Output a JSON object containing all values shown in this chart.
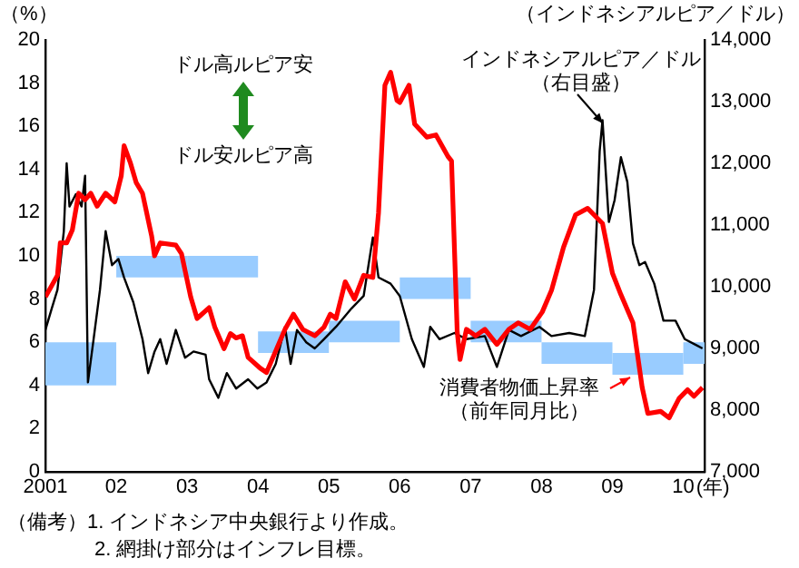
{
  "chart_data": {
    "type": "line",
    "ylabel": "（%）",
    "y2label": "（インドネシアルピア／ドル）",
    "xlabel": "(年)",
    "marker": "none",
    "xlim": [
      2001,
      2010.3
    ],
    "xticks": [
      {
        "value": 2001,
        "label": "2001"
      },
      {
        "value": 2002,
        "label": "02"
      },
      {
        "value": 2003,
        "label": "03"
      },
      {
        "value": 2004,
        "label": "04"
      },
      {
        "value": 2005,
        "label": "05"
      },
      {
        "value": 2006,
        "label": "06"
      },
      {
        "value": 2007,
        "label": "07"
      },
      {
        "value": 2008,
        "label": "08"
      },
      {
        "value": 2009,
        "label": "09"
      },
      {
        "value": 2010,
        "label": "10"
      }
    ],
    "ylim": [
      0,
      20
    ],
    "yticks": [
      0,
      2,
      4,
      6,
      8,
      10,
      12,
      14,
      16,
      18,
      20
    ],
    "y2lim": [
      7000,
      14000
    ],
    "y2ticks": [
      {
        "value": 7000,
        "label": "7,000"
      },
      {
        "value": 8000,
        "label": "8,000"
      },
      {
        "value": 9000,
        "label": "9,000"
      },
      {
        "value": 10000,
        "label": "10,000"
      },
      {
        "value": 11000,
        "label": "11,000"
      },
      {
        "value": 12000,
        "label": "12,000"
      },
      {
        "value": 13000,
        "label": "13,000"
      },
      {
        "value": 14000,
        "label": "14,000"
      }
    ],
    "annotations": [
      "ドル高ルピア安",
      "ドル安ルピア高",
      "（備考）1. インドネシア中央銀行より作成。",
      "2. 網掛け部分はインフレ目標。"
    ],
    "series": [
      {
        "type": "bar",
        "color": "#99ccff",
        "x": [
          2001.5,
          2002.5,
          2003.5,
          2004.5,
          2005.5,
          2006.5,
          2007.5,
          2008.5,
          2009.5,
          2010.15
        ],
        "base": [
          4,
          9,
          9,
          5.5,
          6,
          8,
          6,
          5,
          4.5,
          5
        ],
        "values": [
          2,
          1,
          1,
          1,
          1,
          1,
          1,
          1,
          1,
          1
        ]
      },
      {
        "name": "消費者物価上昇率（前年同月比）",
        "color": "#ff0000",
        "x": [
          2001.0,
          2001.17,
          2001.21,
          2001.3,
          2001.38,
          2001.47,
          2001.56,
          2001.64,
          2001.73,
          2001.85,
          2001.98,
          2002.07,
          2002.11,
          2002.2,
          2002.28,
          2002.37,
          2002.5,
          2002.54,
          2002.62,
          2002.84,
          2002.92,
          2003.05,
          2003.14,
          2003.31,
          2003.39,
          2003.52,
          2003.61,
          2003.69,
          2003.78,
          2003.86,
          2004.03,
          2004.12,
          2004.25,
          2004.38,
          2004.5,
          2004.63,
          2004.8,
          2004.93,
          2005.02,
          2005.1,
          2005.23,
          2005.36,
          2005.49,
          2005.62,
          2005.7,
          2005.79,
          2005.87,
          2005.96,
          2006.0,
          2006.13,
          2006.21,
          2006.38,
          2006.51,
          2006.68,
          2006.73,
          2006.81,
          2006.85,
          2006.94,
          2007.07,
          2007.2,
          2007.37,
          2007.54,
          2007.67,
          2007.84,
          2008.01,
          2008.14,
          2008.31,
          2008.48,
          2008.65,
          2008.74,
          2008.86,
          2009.0,
          2009.12,
          2009.29,
          2009.42,
          2009.5,
          2009.68,
          2009.8,
          2009.94,
          2010.06,
          2010.15,
          2010.27
        ],
        "values": [
          8.1,
          9.1,
          10.6,
          10.6,
          11.2,
          12.9,
          12.6,
          12.9,
          12.3,
          12.9,
          12.5,
          13.7,
          15.1,
          14.3,
          13.4,
          12.9,
          10.9,
          10.0,
          10.6,
          10.5,
          10.1,
          8.1,
          7.1,
          7.6,
          6.7,
          5.7,
          6.4,
          6.2,
          6.3,
          5.3,
          4.8,
          4.6,
          5.6,
          6.6,
          7.3,
          6.6,
          6.3,
          6.7,
          7.3,
          7.1,
          8.8,
          8.0,
          9.1,
          9.0,
          12.0,
          17.9,
          18.5,
          17.2,
          17.1,
          17.9,
          16.1,
          15.5,
          15.6,
          14.6,
          14.4,
          6.5,
          5.2,
          6.6,
          6.3,
          6.6,
          5.9,
          6.6,
          6.9,
          6.6,
          7.4,
          8.4,
          10.4,
          11.9,
          12.2,
          11.9,
          11.5,
          9.2,
          8.2,
          6.9,
          3.9,
          2.7,
          2.8,
          2.5,
          3.4,
          3.8,
          3.5,
          3.9
        ]
      },
      {
        "name": "インドネシアルピア／ドル（右目盛）",
        "color": "#000000",
        "axis": "y2",
        "x": [
          2001.0,
          2001.09,
          2001.17,
          2001.26,
          2001.3,
          2001.34,
          2001.43,
          2001.51,
          2001.56,
          2001.6,
          2001.68,
          2001.77,
          2001.85,
          2001.94,
          2002.03,
          2002.11,
          2002.24,
          2002.37,
          2002.45,
          2002.54,
          2002.62,
          2002.71,
          2002.84,
          2002.97,
          2003.09,
          2003.26,
          2003.31,
          2003.44,
          2003.56,
          2003.69,
          2003.86,
          2003.99,
          2004.12,
          2004.25,
          2004.38,
          2004.46,
          2004.55,
          2004.68,
          2004.8,
          2004.93,
          2005.1,
          2005.32,
          2005.49,
          2005.62,
          2005.7,
          2005.87,
          2006.0,
          2006.17,
          2006.34,
          2006.43,
          2006.56,
          2006.77,
          2006.94,
          2007.2,
          2007.37,
          2007.54,
          2007.71,
          2007.97,
          2008.14,
          2008.39,
          2008.61,
          2008.74,
          2008.82,
          2008.86,
          2008.95,
          2009.03,
          2009.12,
          2009.21,
          2009.29,
          2009.38,
          2009.46,
          2009.59,
          2009.72,
          2009.89,
          2010.02,
          2010.19,
          2010.27
        ],
        "values": [
          9300,
          9650,
          9950,
          10900,
          12000,
          11300,
          11500,
          11300,
          11800,
          8450,
          9150,
          9950,
          10900,
          10350,
          10450,
          10150,
          9750,
          9150,
          8600,
          8950,
          9150,
          8750,
          9300,
          8850,
          8950,
          8900,
          8500,
          8200,
          8600,
          8350,
          8500,
          8350,
          8450,
          8750,
          9350,
          8750,
          9300,
          9100,
          9000,
          9150,
          9350,
          9650,
          9850,
          10800,
          10150,
          10050,
          9850,
          9150,
          8700,
          9350,
          9150,
          9250,
          9150,
          9200,
          8700,
          9300,
          9200,
          9350,
          9200,
          9250,
          9200,
          9950,
          12200,
          12700,
          11050,
          11400,
          12100,
          11700,
          10700,
          10350,
          10400,
          10050,
          9450,
          9450,
          9150,
          9050,
          9000
        ]
      }
    ]
  }
}
